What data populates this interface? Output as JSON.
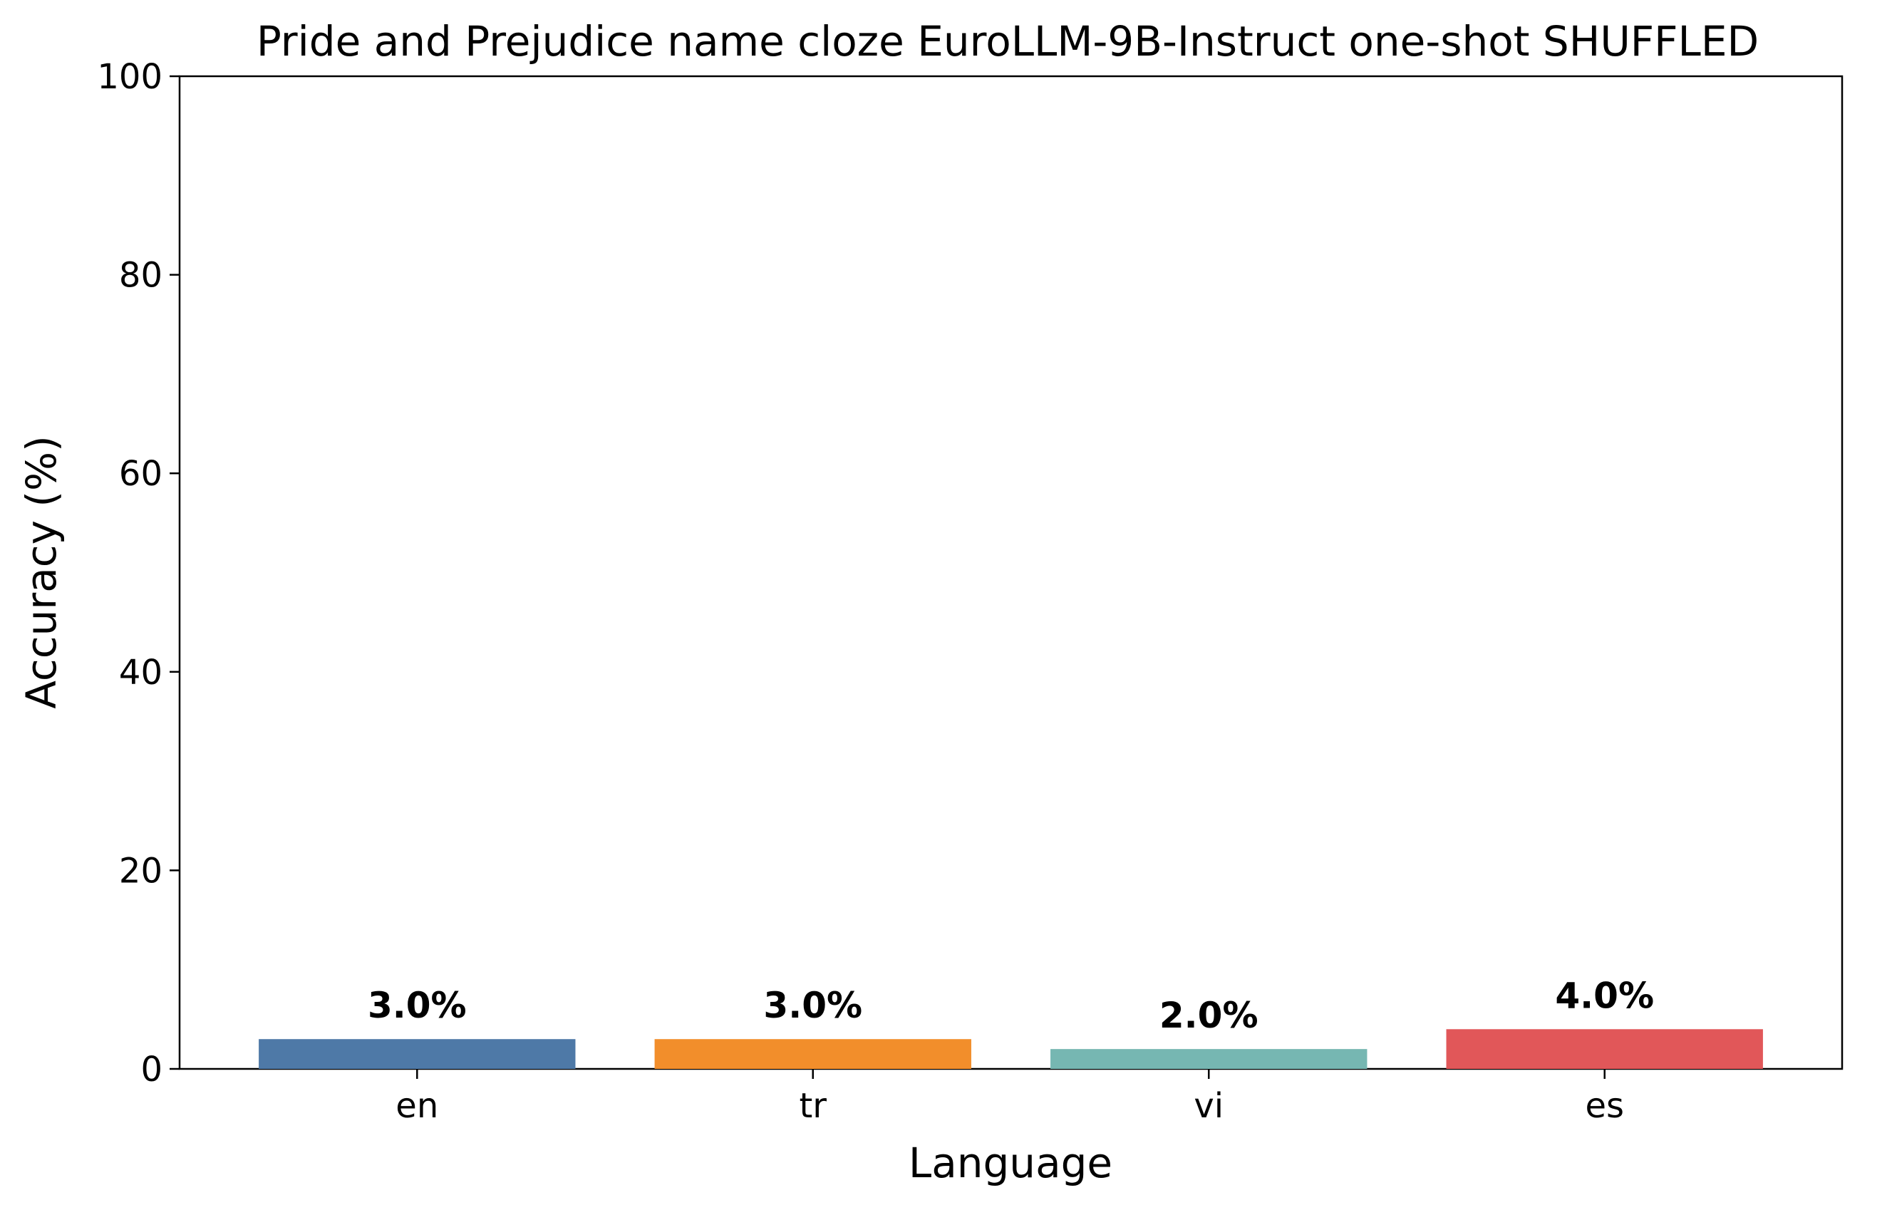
{
  "chart_data": {
    "type": "bar",
    "title": "Pride and Prejudice name cloze EuroLLM-9B-Instruct one-shot SHUFFLED",
    "xlabel": "Language",
    "ylabel": "Accuracy (%)",
    "categories": [
      "en",
      "tr",
      "vi",
      "es"
    ],
    "values": [
      3.0,
      3.0,
      2.0,
      4.0
    ],
    "data_labels": [
      "3.0%",
      "3.0%",
      "2.0%",
      "4.0%"
    ],
    "colors": [
      "#4e79a7",
      "#f28e2b",
      "#76b7b2",
      "#e15759"
    ],
    "ylim": [
      0,
      100
    ],
    "yticks": [
      0,
      20,
      40,
      60,
      80,
      100
    ],
    "grid": false,
    "legend": "none"
  }
}
